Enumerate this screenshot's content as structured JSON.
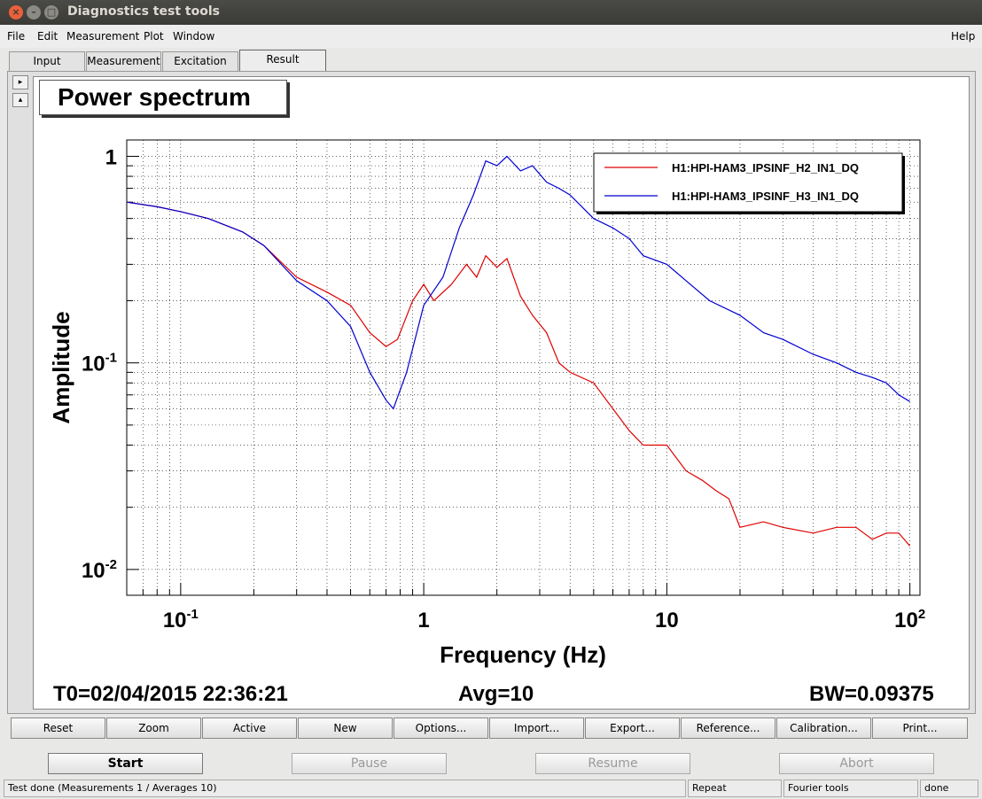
{
  "window": {
    "title": "Diagnostics test tools"
  },
  "menu": {
    "file": "File",
    "edit": "Edit",
    "measurement": "Measurement",
    "plot": "Plot",
    "window": "Window",
    "help": "Help"
  },
  "tabs": [
    "Input",
    "Measurement",
    "Excitation",
    "Result"
  ],
  "plot": {
    "title": "Power spectrum",
    "t0": "T0=02/04/2015 22:36:21",
    "avg": "Avg=10",
    "bw": "BW=0.09375"
  },
  "chart_data": {
    "type": "line",
    "title": "Power spectrum",
    "xlabel": "Frequency (Hz)",
    "ylabel": "Amplitude",
    "x_scale": "log",
    "y_scale": "log",
    "xlim": [
      0.06,
      110
    ],
    "ylim": [
      0.0075,
      1.2
    ],
    "grid": true,
    "legend_position": "top-right",
    "x_ticks": [
      {
        "value": 0.1,
        "mant": "10",
        "exp": "-1"
      },
      {
        "value": 1,
        "mant": "1",
        "exp": ""
      },
      {
        "value": 10,
        "mant": "10",
        "exp": ""
      },
      {
        "value": 100,
        "mant": "10",
        "exp": "2"
      }
    ],
    "y_ticks": [
      {
        "value": 1,
        "mant": "1",
        "exp": ""
      },
      {
        "value": 0.1,
        "mant": "10",
        "exp": "-1"
      },
      {
        "value": 0.01,
        "mant": "10",
        "exp": "-2"
      }
    ],
    "series": [
      {
        "name": "H1:HPI-HAM3_IPSINF_H2_IN1_DQ",
        "color": "#e00000",
        "points": [
          [
            0.06,
            0.6
          ],
          [
            0.08,
            0.57
          ],
          [
            0.1,
            0.54
          ],
          [
            0.13,
            0.5
          ],
          [
            0.18,
            0.43
          ],
          [
            0.22,
            0.37
          ],
          [
            0.3,
            0.26
          ],
          [
            0.4,
            0.22
          ],
          [
            0.5,
            0.19
          ],
          [
            0.6,
            0.14
          ],
          [
            0.7,
            0.12
          ],
          [
            0.78,
            0.13
          ],
          [
            0.9,
            0.2
          ],
          [
            1.0,
            0.24
          ],
          [
            1.1,
            0.2
          ],
          [
            1.3,
            0.24
          ],
          [
            1.5,
            0.3
          ],
          [
            1.65,
            0.26
          ],
          [
            1.8,
            0.33
          ],
          [
            2.0,
            0.29
          ],
          [
            2.2,
            0.32
          ],
          [
            2.5,
            0.21
          ],
          [
            2.8,
            0.17
          ],
          [
            3.2,
            0.14
          ],
          [
            3.6,
            0.1
          ],
          [
            4.0,
            0.09
          ],
          [
            5.0,
            0.08
          ],
          [
            6.0,
            0.06
          ],
          [
            7.0,
            0.047
          ],
          [
            8.0,
            0.04
          ],
          [
            10,
            0.04
          ],
          [
            12,
            0.03
          ],
          [
            14,
            0.027
          ],
          [
            16,
            0.024
          ],
          [
            18,
            0.022
          ],
          [
            20,
            0.016
          ],
          [
            25,
            0.017
          ],
          [
            30,
            0.016
          ],
          [
            40,
            0.015
          ],
          [
            50,
            0.016
          ],
          [
            60,
            0.016
          ],
          [
            70,
            0.014
          ],
          [
            80,
            0.015
          ],
          [
            90,
            0.015
          ],
          [
            100,
            0.013
          ]
        ]
      },
      {
        "name": "H1:HPI-HAM3_IPSINF_H3_IN1_DQ",
        "color": "#0000d0",
        "points": [
          [
            0.06,
            0.6
          ],
          [
            0.08,
            0.57
          ],
          [
            0.1,
            0.54
          ],
          [
            0.13,
            0.5
          ],
          [
            0.18,
            0.43
          ],
          [
            0.22,
            0.37
          ],
          [
            0.3,
            0.25
          ],
          [
            0.4,
            0.2
          ],
          [
            0.5,
            0.15
          ],
          [
            0.6,
            0.09
          ],
          [
            0.7,
            0.066
          ],
          [
            0.75,
            0.06
          ],
          [
            0.85,
            0.09
          ],
          [
            1.0,
            0.19
          ],
          [
            1.2,
            0.26
          ],
          [
            1.4,
            0.45
          ],
          [
            1.6,
            0.65
          ],
          [
            1.8,
            0.95
          ],
          [
            2.0,
            0.9
          ],
          [
            2.2,
            1.0
          ],
          [
            2.5,
            0.85
          ],
          [
            2.8,
            0.9
          ],
          [
            3.2,
            0.75
          ],
          [
            3.6,
            0.7
          ],
          [
            4.0,
            0.65
          ],
          [
            5.0,
            0.5
          ],
          [
            6.0,
            0.45
          ],
          [
            7.0,
            0.4
          ],
          [
            8.0,
            0.33
          ],
          [
            10,
            0.3
          ],
          [
            12,
            0.25
          ],
          [
            15,
            0.2
          ],
          [
            20,
            0.17
          ],
          [
            25,
            0.14
          ],
          [
            30,
            0.13
          ],
          [
            40,
            0.11
          ],
          [
            50,
            0.1
          ],
          [
            60,
            0.09
          ],
          [
            70,
            0.085
          ],
          [
            80,
            0.08
          ],
          [
            90,
            0.07
          ],
          [
            100,
            0.065
          ]
        ]
      }
    ]
  },
  "buttons": {
    "reset": "Reset",
    "zoom": "Zoom",
    "active": "Active",
    "new": "New",
    "options": "Options...",
    "import": "Import...",
    "export": "Export...",
    "reference": "Reference...",
    "calibration": "Calibration...",
    "print": "Print..."
  },
  "controls": {
    "start": "Start",
    "pause": "Pause",
    "resume": "Resume",
    "abort": "Abort"
  },
  "status": {
    "message": "Test done (Measurements 1 / Averages 10)",
    "mode": "Repeat",
    "tool": "Fourier tools",
    "state": "done"
  }
}
